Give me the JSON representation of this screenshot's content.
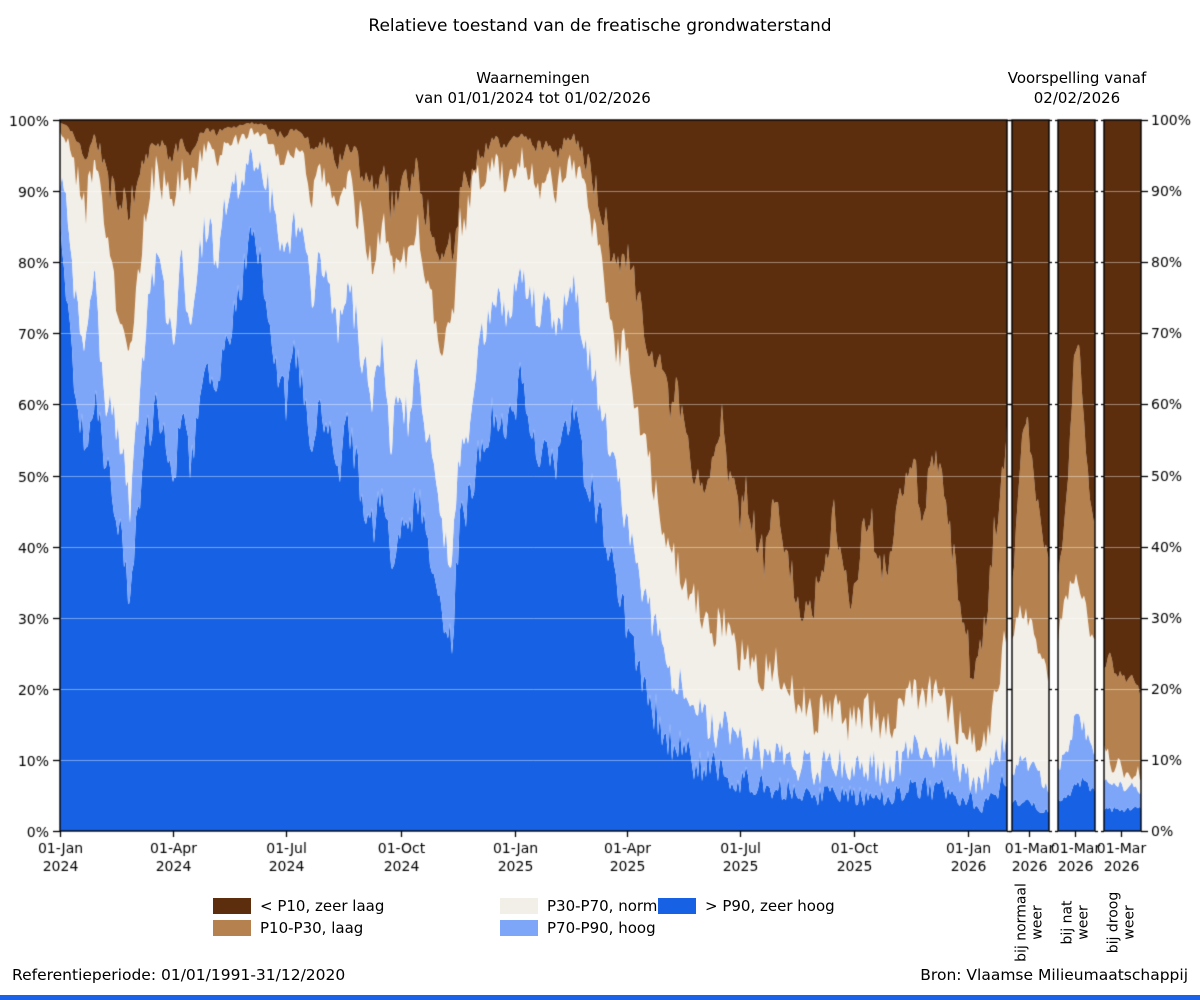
{
  "chart_data": {
    "type": "area",
    "stacked_pct": true,
    "title": "Relatieve toestand van de freatische grondwaterstand",
    "ylim": [
      0,
      100
    ],
    "grid": true,
    "y_ticks": [
      "0%",
      "10%",
      "20%",
      "30%",
      "40%",
      "50%",
      "60%",
      "70%",
      "80%",
      "90%",
      "100%"
    ],
    "series": [
      {
        "key": "zeer_hoog",
        "label": "> P90, zeer hoog",
        "color": "#1661e4"
      },
      {
        "key": "hoog",
        "label": "P70-P90, hoog",
        "color": "#7ea6f8"
      },
      {
        "key": "normaal",
        "label": "P30-P70, normaal",
        "color": "#f2efe8"
      },
      {
        "key": "laag",
        "label": "P10-P30, laag",
        "color": "#b5814e"
      },
      {
        "key": "zeer_laag",
        "label": "< P10, zeer laag",
        "color": "#5c2e0d"
      }
    ],
    "legend_order_series_indices": [
      4,
      3,
      2,
      1,
      0
    ],
    "boundary_note": "rows = [date, cumulative % top of '> P90', top of 'P70-P90', top of 'P30-P70', top of 'P10-P30']; '< P10' fills the remainder to 100%",
    "observations": {
      "subtitle": [
        "Waarnemingen",
        "van 01/01/2024 tot 01/02/2026"
      ],
      "x_start": "2024-01-01",
      "x_end": "2026-02-01",
      "x_ticks": [
        {
          "date": "2024-01-01",
          "label": [
            "01-Jan",
            "2024"
          ]
        },
        {
          "date": "2024-04-01",
          "label": [
            "01-Apr",
            "2024"
          ]
        },
        {
          "date": "2024-07-01",
          "label": [
            "01-Jul",
            "2024"
          ]
        },
        {
          "date": "2024-10-01",
          "label": [
            "01-Oct",
            "2024"
          ]
        },
        {
          "date": "2025-01-01",
          "label": [
            "01-Jan",
            "2025"
          ]
        },
        {
          "date": "2025-04-01",
          "label": [
            "01-Apr",
            "2025"
          ]
        },
        {
          "date": "2025-07-01",
          "label": [
            "01-Jul",
            "2025"
          ]
        },
        {
          "date": "2025-10-01",
          "label": [
            "01-Oct",
            "2025"
          ]
        },
        {
          "date": "2026-01-01",
          "label": [
            "01-Jan",
            "2026"
          ]
        }
      ],
      "rows": [
        [
          "2024-01-01",
          85,
          92,
          98,
          99.5
        ],
        [
          "2024-01-08",
          72,
          85,
          97,
          99
        ],
        [
          "2024-01-15",
          60,
          72,
          92,
          97
        ],
        [
          "2024-01-22",
          55,
          68,
          88,
          95
        ],
        [
          "2024-01-29",
          62,
          78,
          94,
          98
        ],
        [
          "2024-02-05",
          52,
          62,
          85,
          94
        ],
        [
          "2024-02-12",
          48,
          58,
          78,
          90
        ],
        [
          "2024-02-19",
          42,
          55,
          72,
          88
        ],
        [
          "2024-02-26",
          32,
          45,
          68,
          87
        ],
        [
          "2024-03-04",
          45,
          60,
          78,
          91
        ],
        [
          "2024-03-11",
          55,
          72,
          88,
          95
        ],
        [
          "2024-03-18",
          60,
          80,
          93,
          97
        ],
        [
          "2024-03-25",
          55,
          75,
          90,
          96
        ],
        [
          "2024-04-01",
          50,
          70,
          88,
          95
        ],
        [
          "2024-04-08",
          58,
          80,
          93,
          97
        ],
        [
          "2024-04-15",
          52,
          72,
          90,
          96
        ],
        [
          "2024-04-22",
          60,
          82,
          95,
          98
        ],
        [
          "2024-04-29",
          65,
          86,
          96,
          98.5
        ],
        [
          "2024-05-06",
          60,
          80,
          94,
          98
        ],
        [
          "2024-05-13",
          68,
          88,
          96,
          99
        ],
        [
          "2024-05-20",
          73,
          90,
          97,
          99
        ],
        [
          "2024-05-27",
          78,
          92,
          97.5,
          99.3
        ],
        [
          "2024-06-03",
          84,
          95,
          98.5,
          99.6
        ],
        [
          "2024-06-10",
          80,
          93,
          98,
          99.4
        ],
        [
          "2024-06-17",
          72,
          90,
          97,
          99
        ],
        [
          "2024-06-24",
          65,
          85,
          95,
          98
        ],
        [
          "2024-07-01",
          60,
          82,
          94,
          98
        ],
        [
          "2024-07-08",
          68,
          86,
          96,
          98.5
        ],
        [
          "2024-07-15",
          62,
          82,
          94,
          98
        ],
        [
          "2024-07-22",
          55,
          76,
          90,
          96
        ],
        [
          "2024-07-29",
          60,
          80,
          93,
          97
        ],
        [
          "2024-08-05",
          55,
          75,
          90,
          96
        ],
        [
          "2024-08-12",
          50,
          70,
          87,
          94
        ],
        [
          "2024-08-19",
          58,
          78,
          92,
          97
        ],
        [
          "2024-08-26",
          52,
          72,
          88,
          95
        ],
        [
          "2024-09-02",
          46,
          65,
          84,
          92
        ],
        [
          "2024-09-09",
          42,
          60,
          80,
          90
        ],
        [
          "2024-09-16",
          50,
          68,
          86,
          94
        ],
        [
          "2024-09-23",
          38,
          55,
          78,
          88
        ],
        [
          "2024-09-30",
          44,
          62,
          82,
          91
        ],
        [
          "2024-10-07",
          40,
          58,
          80,
          90
        ],
        [
          "2024-10-14",
          48,
          66,
          85,
          94
        ],
        [
          "2024-10-21",
          42,
          58,
          78,
          88
        ],
        [
          "2024-10-28",
          36,
          50,
          72,
          84
        ],
        [
          "2024-11-04",
          30,
          42,
          68,
          80
        ],
        [
          "2024-11-11",
          26,
          38,
          70,
          82
        ],
        [
          "2024-11-18",
          44,
          54,
          86,
          90
        ],
        [
          "2024-11-25",
          46,
          56,
          88,
          91
        ],
        [
          "2024-12-02",
          52,
          66,
          92,
          95
        ],
        [
          "2024-12-09",
          56,
          72,
          93,
          96
        ],
        [
          "2024-12-16",
          60,
          76,
          94,
          97
        ],
        [
          "2024-12-23",
          55,
          72,
          92,
          96
        ],
        [
          "2024-12-30",
          58,
          75,
          93,
          97
        ],
        [
          "2025-01-06",
          64,
          80,
          95,
          98
        ],
        [
          "2025-01-13",
          58,
          76,
          93,
          97
        ],
        [
          "2025-01-20",
          52,
          72,
          91,
          96
        ],
        [
          "2025-01-27",
          56,
          75,
          93,
          97
        ],
        [
          "2025-02-03",
          50,
          68,
          90,
          95
        ],
        [
          "2025-02-10",
          55,
          74,
          93,
          97
        ],
        [
          "2025-02-17",
          60,
          78,
          94,
          97.5
        ],
        [
          "2025-02-24",
          52,
          70,
          90,
          95
        ],
        [
          "2025-03-03",
          48,
          66,
          87,
          93
        ],
        [
          "2025-03-10",
          44,
          60,
          82,
          89
        ],
        [
          "2025-03-17",
          40,
          55,
          75,
          84
        ],
        [
          "2025-03-24",
          36,
          50,
          68,
          78
        ],
        [
          "2025-03-31",
          30,
          44,
          68,
          82
        ],
        [
          "2025-04-07",
          25,
          38,
          60,
          78
        ],
        [
          "2025-04-14",
          22,
          34,
          55,
          72
        ],
        [
          "2025-04-21",
          18,
          30,
          50,
          68
        ],
        [
          "2025-04-28",
          15,
          26,
          45,
          64
        ],
        [
          "2025-05-05",
          13,
          23,
          40,
          60
        ],
        [
          "2025-05-12",
          12,
          21,
          38,
          62
        ],
        [
          "2025-05-19",
          11,
          19,
          34,
          55
        ],
        [
          "2025-05-26",
          10,
          17,
          32,
          50
        ],
        [
          "2025-06-02",
          9,
          16,
          30,
          46
        ],
        [
          "2025-06-09",
          9,
          15,
          28,
          52
        ],
        [
          "2025-06-16",
          8,
          14,
          30,
          58
        ],
        [
          "2025-06-23",
          8,
          14,
          27,
          50
        ],
        [
          "2025-06-30",
          7,
          13,
          25,
          44
        ],
        [
          "2025-07-07",
          7,
          12,
          26,
          48
        ],
        [
          "2025-07-14",
          7,
          12,
          24,
          42
        ],
        [
          "2025-07-21",
          6,
          11,
          22,
          38
        ],
        [
          "2025-07-28",
          6,
          11,
          24,
          46
        ],
        [
          "2025-08-04",
          6,
          10,
          22,
          42
        ],
        [
          "2025-08-11",
          6,
          10,
          20,
          36
        ],
        [
          "2025-08-18",
          5,
          9,
          18,
          32
        ],
        [
          "2025-08-25",
          5,
          9,
          17,
          30
        ],
        [
          "2025-09-01",
          5,
          9,
          16,
          34
        ],
        [
          "2025-09-08",
          5,
          9,
          17,
          40
        ],
        [
          "2025-09-15",
          5,
          10,
          18,
          44
        ],
        [
          "2025-09-22",
          5,
          9,
          16,
          38
        ],
        [
          "2025-09-29",
          5,
          8,
          15,
          32
        ],
        [
          "2025-10-06",
          5,
          9,
          16,
          40
        ],
        [
          "2025-10-13",
          5,
          9,
          17,
          45
        ],
        [
          "2025-10-20",
          5,
          9,
          15,
          40
        ],
        [
          "2025-10-27",
          5,
          8,
          14,
          35
        ],
        [
          "2025-11-03",
          5,
          9,
          16,
          42
        ],
        [
          "2025-11-10",
          6,
          10,
          18,
          48
        ],
        [
          "2025-11-17",
          6,
          11,
          20,
          52
        ],
        [
          "2025-11-24",
          6,
          10,
          18,
          46
        ],
        [
          "2025-12-01",
          6,
          10,
          20,
          50
        ],
        [
          "2025-12-08",
          6,
          11,
          22,
          52
        ],
        [
          "2025-12-15",
          6,
          10,
          18,
          44
        ],
        [
          "2025-12-22",
          5,
          9,
          15,
          36
        ],
        [
          "2025-12-29",
          5,
          8,
          13,
          28
        ],
        [
          "2026-01-05",
          4,
          7,
          11,
          22
        ],
        [
          "2026-01-12",
          3,
          6,
          10,
          25
        ],
        [
          "2026-01-19",
          5,
          9,
          16,
          38
        ],
        [
          "2026-01-26",
          6,
          11,
          22,
          48
        ],
        [
          "2026-02-01",
          7,
          12,
          28,
          57
        ]
      ]
    },
    "forecasts": {
      "subtitle": [
        "Voorspelling vanaf",
        "02/02/2026"
      ],
      "x_start": "2026-02-02",
      "x_end": "2026-04-01",
      "x_tick": {
        "date": "2026-03-01",
        "label": [
          "01-Mar",
          "2026"
        ]
      },
      "panels": [
        {
          "label_lines": [
            "bij normaal",
            "weer"
          ],
          "rows": [
            [
              "2026-02-02",
              4,
              8,
              26,
              34
            ],
            [
              "2026-02-10",
              4,
              9,
              30,
              44
            ],
            [
              "2026-02-18",
              4,
              10,
              31,
              56
            ],
            [
              "2026-02-26",
              4,
              10,
              30,
              58
            ],
            [
              "2026-03-06",
              4,
              9,
              28,
              52
            ],
            [
              "2026-03-14",
              3,
              8,
              26,
              46
            ],
            [
              "2026-03-22",
              3,
              7,
              24,
              42
            ],
            [
              "2026-04-01",
              3,
              6,
              22,
              38
            ]
          ]
        },
        {
          "label_lines": [
            "bij nat",
            "weer"
          ],
          "rows": [
            [
              "2026-02-02",
              4,
              8,
              27,
              36
            ],
            [
              "2026-02-10",
              5,
              10,
              31,
              42
            ],
            [
              "2026-02-18",
              5,
              12,
              34,
              50
            ],
            [
              "2026-02-26",
              6,
              15,
              36,
              65
            ],
            [
              "2026-03-06",
              7,
              17,
              35,
              70
            ],
            [
              "2026-03-14",
              7,
              15,
              32,
              58
            ],
            [
              "2026-03-22",
              6,
              13,
              29,
              48
            ],
            [
              "2026-04-01",
              6,
              12,
              27,
              44
            ]
          ]
        },
        {
          "label_lines": [
            "bij droog",
            "weer"
          ],
          "rows": [
            [
              "2026-02-02",
              3,
              7,
              12,
              24
            ],
            [
              "2026-02-10",
              3,
              7,
              10,
              24
            ],
            [
              "2026-02-18",
              3,
              7,
              9,
              23
            ],
            [
              "2026-02-26",
              3,
              7,
              9,
              22
            ],
            [
              "2026-03-06",
              3,
              6,
              8,
              22
            ],
            [
              "2026-03-14",
              3,
              6,
              8,
              21
            ],
            [
              "2026-03-22",
              3,
              6,
              8,
              20
            ],
            [
              "2026-04-01",
              3,
              6,
              8,
              20
            ]
          ]
        }
      ]
    },
    "footer_left": "Referentieperiode: 01/01/1991-31/12/2020",
    "footer_right": "Bron: Vlaamse Milieumaatschappij",
    "accent_bar_color": "#1a63e8",
    "grid_color": "rgba(255,255,255,0.42)"
  }
}
